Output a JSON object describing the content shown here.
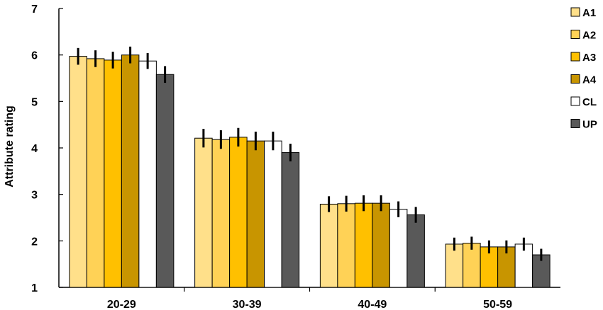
{
  "chart_data": {
    "type": "bar",
    "title": "",
    "xlabel": "",
    "ylabel": "Attribute rating",
    "ylim": [
      1,
      7
    ],
    "yticks": [
      "1",
      "2",
      "3",
      "4",
      "5",
      "6",
      "7"
    ],
    "categories": [
      "20-29",
      "30-39",
      "40-49",
      "50-59"
    ],
    "legend_position": "right",
    "grid": false,
    "series": [
      {
        "name": "A1",
        "color": "#FFE08A",
        "values": [
          5.97,
          4.21,
          2.79,
          1.93
        ],
        "errors": [
          0.18,
          0.2,
          0.17,
          0.14
        ]
      },
      {
        "name": "A2",
        "color": "#FFD256",
        "values": [
          5.92,
          4.18,
          2.8,
          1.95
        ],
        "errors": [
          0.18,
          0.2,
          0.17,
          0.14
        ]
      },
      {
        "name": "A3",
        "color": "#FFC000",
        "values": [
          5.89,
          4.23,
          2.81,
          1.87
        ],
        "errors": [
          0.18,
          0.2,
          0.17,
          0.14
        ]
      },
      {
        "name": "A4",
        "color": "#C89500",
        "values": [
          6.0,
          4.15,
          2.81,
          1.87
        ],
        "errors": [
          0.18,
          0.2,
          0.17,
          0.14
        ]
      },
      {
        "name": "CL",
        "color": "#FFFFFF",
        "values": [
          5.87,
          4.15,
          2.68,
          1.93
        ],
        "errors": [
          0.17,
          0.2,
          0.17,
          0.14
        ]
      },
      {
        "name": "UP",
        "color": "#595959",
        "values": [
          5.58,
          3.9,
          2.56,
          1.7
        ],
        "errors": [
          0.18,
          0.19,
          0.17,
          0.13
        ]
      }
    ]
  }
}
